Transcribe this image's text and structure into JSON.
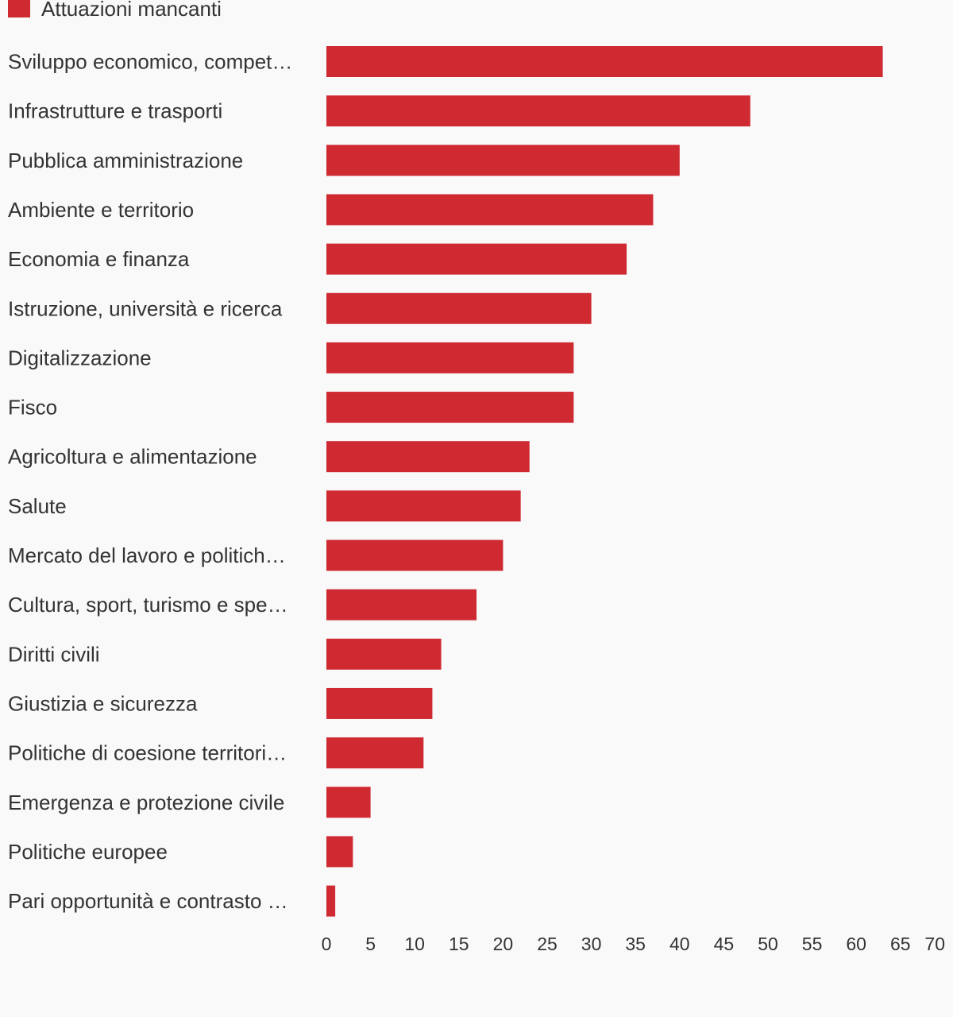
{
  "chart_data": {
    "type": "bar",
    "orientation": "horizontal",
    "series": [
      {
        "name": "Attuazioni mancanti",
        "color": "#cf2a32",
        "values": [
          63,
          48,
          40,
          37,
          34,
          30,
          28,
          28,
          23,
          22,
          20,
          17,
          13,
          12,
          11,
          5,
          3,
          1
        ]
      }
    ],
    "categories": [
      "Sviluppo economico, compet…",
      "Infrastrutture e trasporti",
      "Pubblica amministrazione",
      "Ambiente e territorio",
      "Economia e finanza",
      "Istruzione, università e ricerca",
      "Digitalizzazione",
      "Fisco",
      "Agricoltura e alimentazione",
      "Salute",
      "Mercato del lavoro e politich…",
      "Cultura, sport, turismo e spe…",
      "Diritti civili",
      "Giustizia e sicurezza",
      "Politiche di coesione territori…",
      "Emergenza e protezione civile",
      "Politiche europee",
      "Pari opportunità e contrasto …"
    ],
    "xlim": [
      0,
      70
    ],
    "xticks": [
      0,
      5,
      10,
      15,
      20,
      25,
      30,
      35,
      40,
      45,
      50,
      55,
      60,
      65,
      70
    ],
    "grid": false,
    "legend_position": "top-left",
    "title": "",
    "xlabel": "",
    "ylabel": ""
  }
}
